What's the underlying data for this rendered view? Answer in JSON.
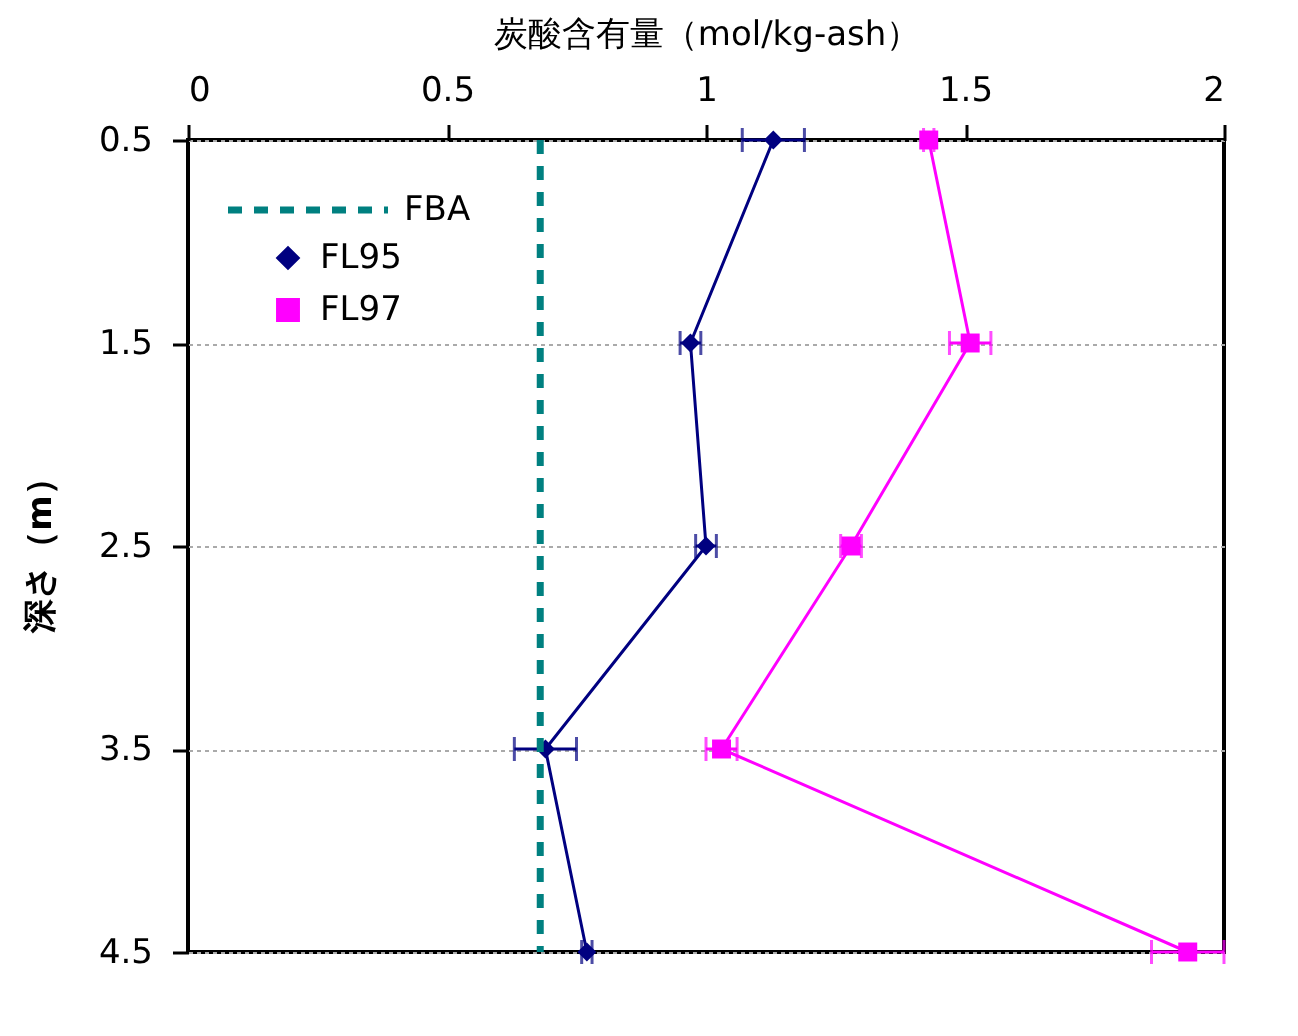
{
  "chart_data": {
    "type": "line",
    "xlabel": "炭酸含有量（mol/kg-ash）",
    "ylabel": "深さ（m）",
    "xlim": [
      0,
      2
    ],
    "xticks": [
      0,
      0.5,
      1,
      1.5,
      2
    ],
    "ylim": [
      4.5,
      0.5
    ],
    "yticks": [
      0.5,
      1.5,
      2.5,
      3.5,
      4.5
    ],
    "grid": "y",
    "legend": "top left",
    "series": [
      {
        "name": "FL95",
        "color": "#000080",
        "marker": "diamond",
        "x": [
          1.13,
          0.97,
          1.0,
          0.69,
          0.77
        ],
        "values": [
          0.5,
          1.5,
          2.5,
          3.5,
          4.5
        ],
        "xerrors": [
          0.06,
          0.02,
          0.02,
          0.06,
          0.01
        ]
      },
      {
        "name": "FL97",
        "color": "#ff00ff",
        "marker": "square",
        "x": [
          1.43,
          1.51,
          1.28,
          1.03,
          1.93
        ],
        "values": [
          0.5,
          1.5,
          2.5,
          3.5,
          4.5
        ],
        "xerrors": [
          0.01,
          0.04,
          0.02,
          0.03,
          0.07
        ]
      }
    ],
    "ref_lines": [
      {
        "axis": "x",
        "value": 0.68,
        "label": "FBA",
        "color": "#008080",
        "line_style": "dashed"
      }
    ]
  }
}
